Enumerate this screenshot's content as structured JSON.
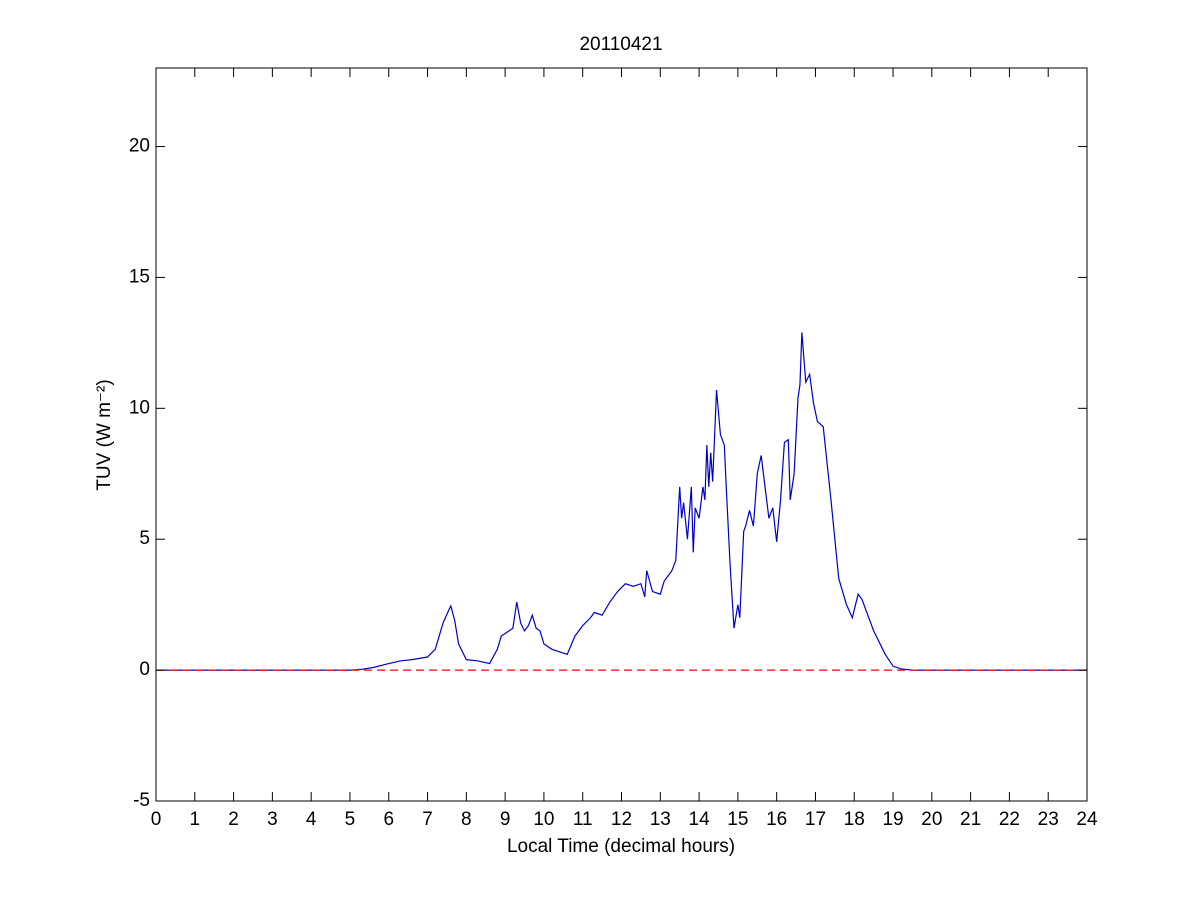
{
  "chart_data": {
    "type": "line",
    "title": "20110421",
    "x_label": "Local Time (decimal hours)",
    "y_label": "TUV (W m⁻²)",
    "xlim": [
      0,
      24
    ],
    "ylim": [
      -5,
      23
    ],
    "xticks": [
      0,
      1,
      2,
      3,
      4,
      5,
      6,
      7,
      8,
      9,
      10,
      11,
      12,
      13,
      14,
      15,
      16,
      17,
      18,
      19,
      20,
      21,
      22,
      23,
      24
    ],
    "yticks": [
      -5,
      0,
      5,
      10,
      15,
      20
    ],
    "grid": false,
    "series": [
      {
        "color": "#0000c8",
        "dashed": false,
        "x": [
          0,
          5,
          5.3,
          5.6,
          6,
          6.3,
          6.6,
          7,
          7.2,
          7.4,
          7.55,
          7.6,
          7.7,
          7.8,
          8,
          8.3,
          8.6,
          8.8,
          8.9,
          9.1,
          9.2,
          9.3,
          9.4,
          9.5,
          9.6,
          9.7,
          9.8,
          9.9,
          10,
          10.2,
          10.4,
          10.6,
          10.8,
          11,
          11.2,
          11.3,
          11.5,
          11.7,
          11.9,
          12.1,
          12.3,
          12.5,
          12.6,
          12.65,
          12.8,
          13,
          13.1,
          13.3,
          13.4,
          13.5,
          13.55,
          13.6,
          13.7,
          13.8,
          13.85,
          13.9,
          14,
          14.1,
          14.15,
          14.2,
          14.25,
          14.3,
          14.35,
          14.45,
          14.55,
          14.65,
          14.7,
          14.8,
          14.9,
          15,
          15.05,
          15.15,
          15.2,
          15.3,
          15.4,
          15.5,
          15.6,
          15.7,
          15.8,
          15.9,
          16,
          16.1,
          16.2,
          16.3,
          16.35,
          16.45,
          16.55,
          16.6,
          16.65,
          16.75,
          16.85,
          16.95,
          17.05,
          17.2,
          17.4,
          17.6,
          17.8,
          17.95,
          18.1,
          18.2,
          18.5,
          18.8,
          19,
          19.2,
          19.5,
          24
        ],
        "values": [
          0,
          0,
          0.03,
          0.1,
          0.25,
          0.35,
          0.4,
          0.5,
          0.8,
          1.8,
          2.3,
          2.45,
          1.9,
          1,
          0.4,
          0.35,
          0.25,
          0.8,
          1.3,
          1.5,
          1.6,
          2.6,
          1.8,
          1.5,
          1.7,
          2.1,
          1.6,
          1.5,
          1,
          0.8,
          0.7,
          0.6,
          1.3,
          1.7,
          2,
          2.2,
          2.1,
          2.6,
          3,
          3.3,
          3.2,
          3.3,
          2.8,
          3.8,
          3,
          2.9,
          3.4,
          3.8,
          4.2,
          7,
          5.8,
          6.4,
          5,
          7,
          4.5,
          6.2,
          5.8,
          7,
          6.5,
          8.6,
          7,
          8.3,
          7.2,
          10.7,
          9,
          8.6,
          7,
          4,
          1.6,
          2.5,
          2,
          5.3,
          5.5,
          6.1,
          5.5,
          7.5,
          8.2,
          7,
          5.8,
          6.2,
          4.9,
          6.5,
          8.7,
          8.8,
          6.5,
          7.5,
          10.4,
          10.9,
          12.9,
          11,
          11.3,
          10.2,
          9.5,
          9.3,
          6.5,
          3.5,
          2.5,
          2,
          2.9,
          2.7,
          1.5,
          0.6,
          0.15,
          0.05,
          0,
          0
        ]
      },
      {
        "color": "#ff0000",
        "dashed": true,
        "x": [
          0,
          24
        ],
        "values": [
          0,
          0
        ]
      }
    ]
  }
}
